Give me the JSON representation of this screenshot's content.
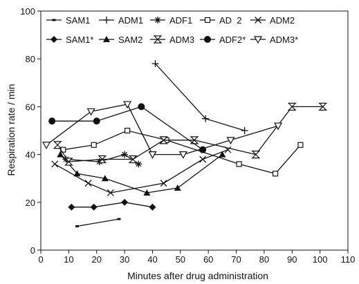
{
  "chart_data": {
    "type": "line",
    "title": "",
    "xlabel": "Minutes after drug administration",
    "ylabel": "Respiration rate / min",
    "xlim": [
      0,
      110
    ],
    "ylim": [
      0,
      100
    ],
    "xticks": [
      0,
      10,
      20,
      30,
      40,
      50,
      60,
      70,
      80,
      90,
      100,
      110
    ],
    "yticks": [
      0,
      20,
      40,
      60,
      80,
      100
    ],
    "grid": false,
    "legend_position": "top",
    "series": [
      {
        "name": "SAM1",
        "marker": "dash",
        "points": [
          [
            13,
            10
          ],
          [
            28,
            13
          ]
        ]
      },
      {
        "name": "ADM1",
        "marker": "plus",
        "points": [
          [
            41,
            78
          ],
          [
            59,
            55
          ],
          [
            73,
            50
          ]
        ]
      },
      {
        "name": "ADF1",
        "marker": "asterisk",
        "points": [
          [
            9,
            38
          ],
          [
            21,
            37
          ],
          [
            30,
            40
          ],
          [
            35,
            36
          ]
        ]
      },
      {
        "name": "AD  2",
        "marker": "square",
        "points": [
          [
            8,
            42
          ],
          [
            19,
            44
          ],
          [
            31,
            50
          ],
          [
            45,
            46
          ],
          [
            71,
            36
          ],
          [
            84,
            32
          ],
          [
            93,
            44
          ]
        ]
      },
      {
        "name": "ADM2",
        "marker": "x",
        "points": [
          [
            5,
            36
          ],
          [
            17,
            28
          ],
          [
            25,
            24
          ],
          [
            44,
            28
          ],
          [
            58,
            38
          ],
          [
            67,
            42
          ]
        ]
      },
      {
        "name": "SAM1*",
        "marker": "diamond",
        "points": [
          [
            11,
            18
          ],
          [
            19,
            18
          ],
          [
            30,
            20
          ],
          [
            40,
            18
          ]
        ]
      },
      {
        "name": "SAM2",
        "marker": "triangle",
        "points": [
          [
            7,
            40
          ],
          [
            13,
            32
          ],
          [
            23,
            30
          ],
          [
            38,
            24
          ],
          [
            49,
            26
          ],
          [
            65,
            40
          ]
        ]
      },
      {
        "name": "ADM3",
        "marker": "hourglass",
        "points": [
          [
            6,
            44
          ],
          [
            10,
            37
          ],
          [
            22,
            38
          ],
          [
            33,
            38
          ],
          [
            44,
            46
          ],
          [
            55,
            46
          ],
          [
            77,
            40
          ],
          [
            90,
            60
          ],
          [
            101,
            60
          ]
        ]
      },
      {
        "name": "ADF2*",
        "marker": "circle",
        "points": [
          [
            4,
            54
          ],
          [
            20,
            54
          ],
          [
            36,
            60
          ],
          [
            58,
            42
          ]
        ]
      },
      {
        "name": "ADM3*",
        "marker": "tri_down",
        "points": [
          [
            2,
            44
          ],
          [
            18,
            58
          ],
          [
            31,
            61
          ],
          [
            40,
            40
          ],
          [
            51,
            40
          ],
          [
            68,
            46
          ],
          [
            85,
            52
          ]
        ]
      }
    ]
  }
}
